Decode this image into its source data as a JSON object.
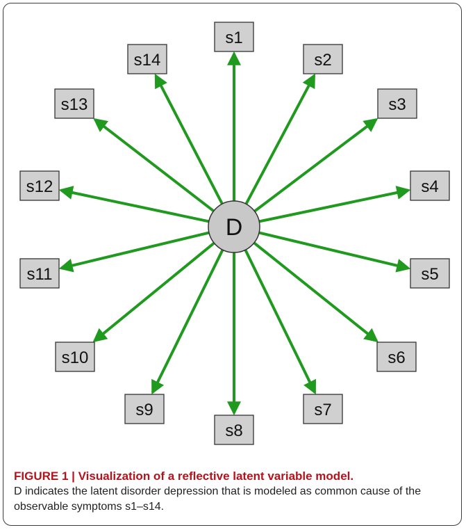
{
  "diagram": {
    "center": {
      "label": "D"
    },
    "nodes": [
      {
        "label": "s1"
      },
      {
        "label": "s2"
      },
      {
        "label": "s3"
      },
      {
        "label": "s4"
      },
      {
        "label": "s5"
      },
      {
        "label": "s6"
      },
      {
        "label": "s7"
      },
      {
        "label": "s8"
      },
      {
        "label": "s9"
      },
      {
        "label": "s10"
      },
      {
        "label": "s11"
      },
      {
        "label": "s12"
      },
      {
        "label": "s13"
      },
      {
        "label": "s14"
      }
    ],
    "edge_color": "#1f9a1f",
    "node_fill": "#d0d0d0",
    "center_fill": "#c8c8c8"
  },
  "caption": {
    "title": "FIGURE 1 | Visualization of a reflective latent variable model.",
    "body": "D indicates the latent disorder depression that is modeled as common cause of the observable symptoms s1–s14."
  }
}
